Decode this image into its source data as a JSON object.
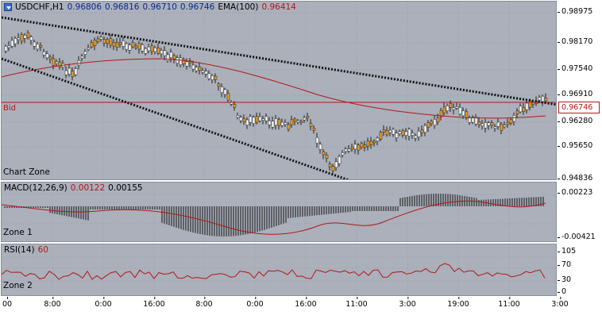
{
  "main_pane": {
    "symbol": "USDCHF,H1",
    "ohlc": [
      "0.96806",
      "0.96816",
      "0.96710",
      "0.96746"
    ],
    "ema_label": "EMA(100)",
    "ema_value": "0.96414",
    "bid_label": "Bid",
    "zone_label": "Chart Zone",
    "current_price": "0.96746",
    "y_ticks": [
      "0.98975",
      "0.98170",
      "0.97540",
      "0.96910",
      "0.96280",
      "0.95650",
      "0.94836"
    ]
  },
  "macd_pane": {
    "label": "MACD(12,26,9)",
    "value1": "0.00122",
    "value2": "0.00155",
    "zone_label": "Zone 1",
    "y_ticks": [
      "0.00223",
      "-0.00421"
    ]
  },
  "rsi_pane": {
    "label": "RSI(14)",
    "value": "60",
    "zone_label": "Zone 2",
    "y_ticks": [
      "105",
      "70",
      "30",
      "0"
    ]
  },
  "x_axis": {
    "ticks": [
      "00",
      "8:00",
      "0:00",
      "16:00",
      "8:00",
      "0:00",
      "16:00",
      "11:00",
      "3:00",
      "19:00",
      "11:00",
      "3:00"
    ]
  },
  "colors": {
    "pane_background": "#abb0bb",
    "candle_body": "#f0a020",
    "ema_line": "#b01818",
    "trendline": "#111111",
    "grid": "#9aa0ab"
  }
}
